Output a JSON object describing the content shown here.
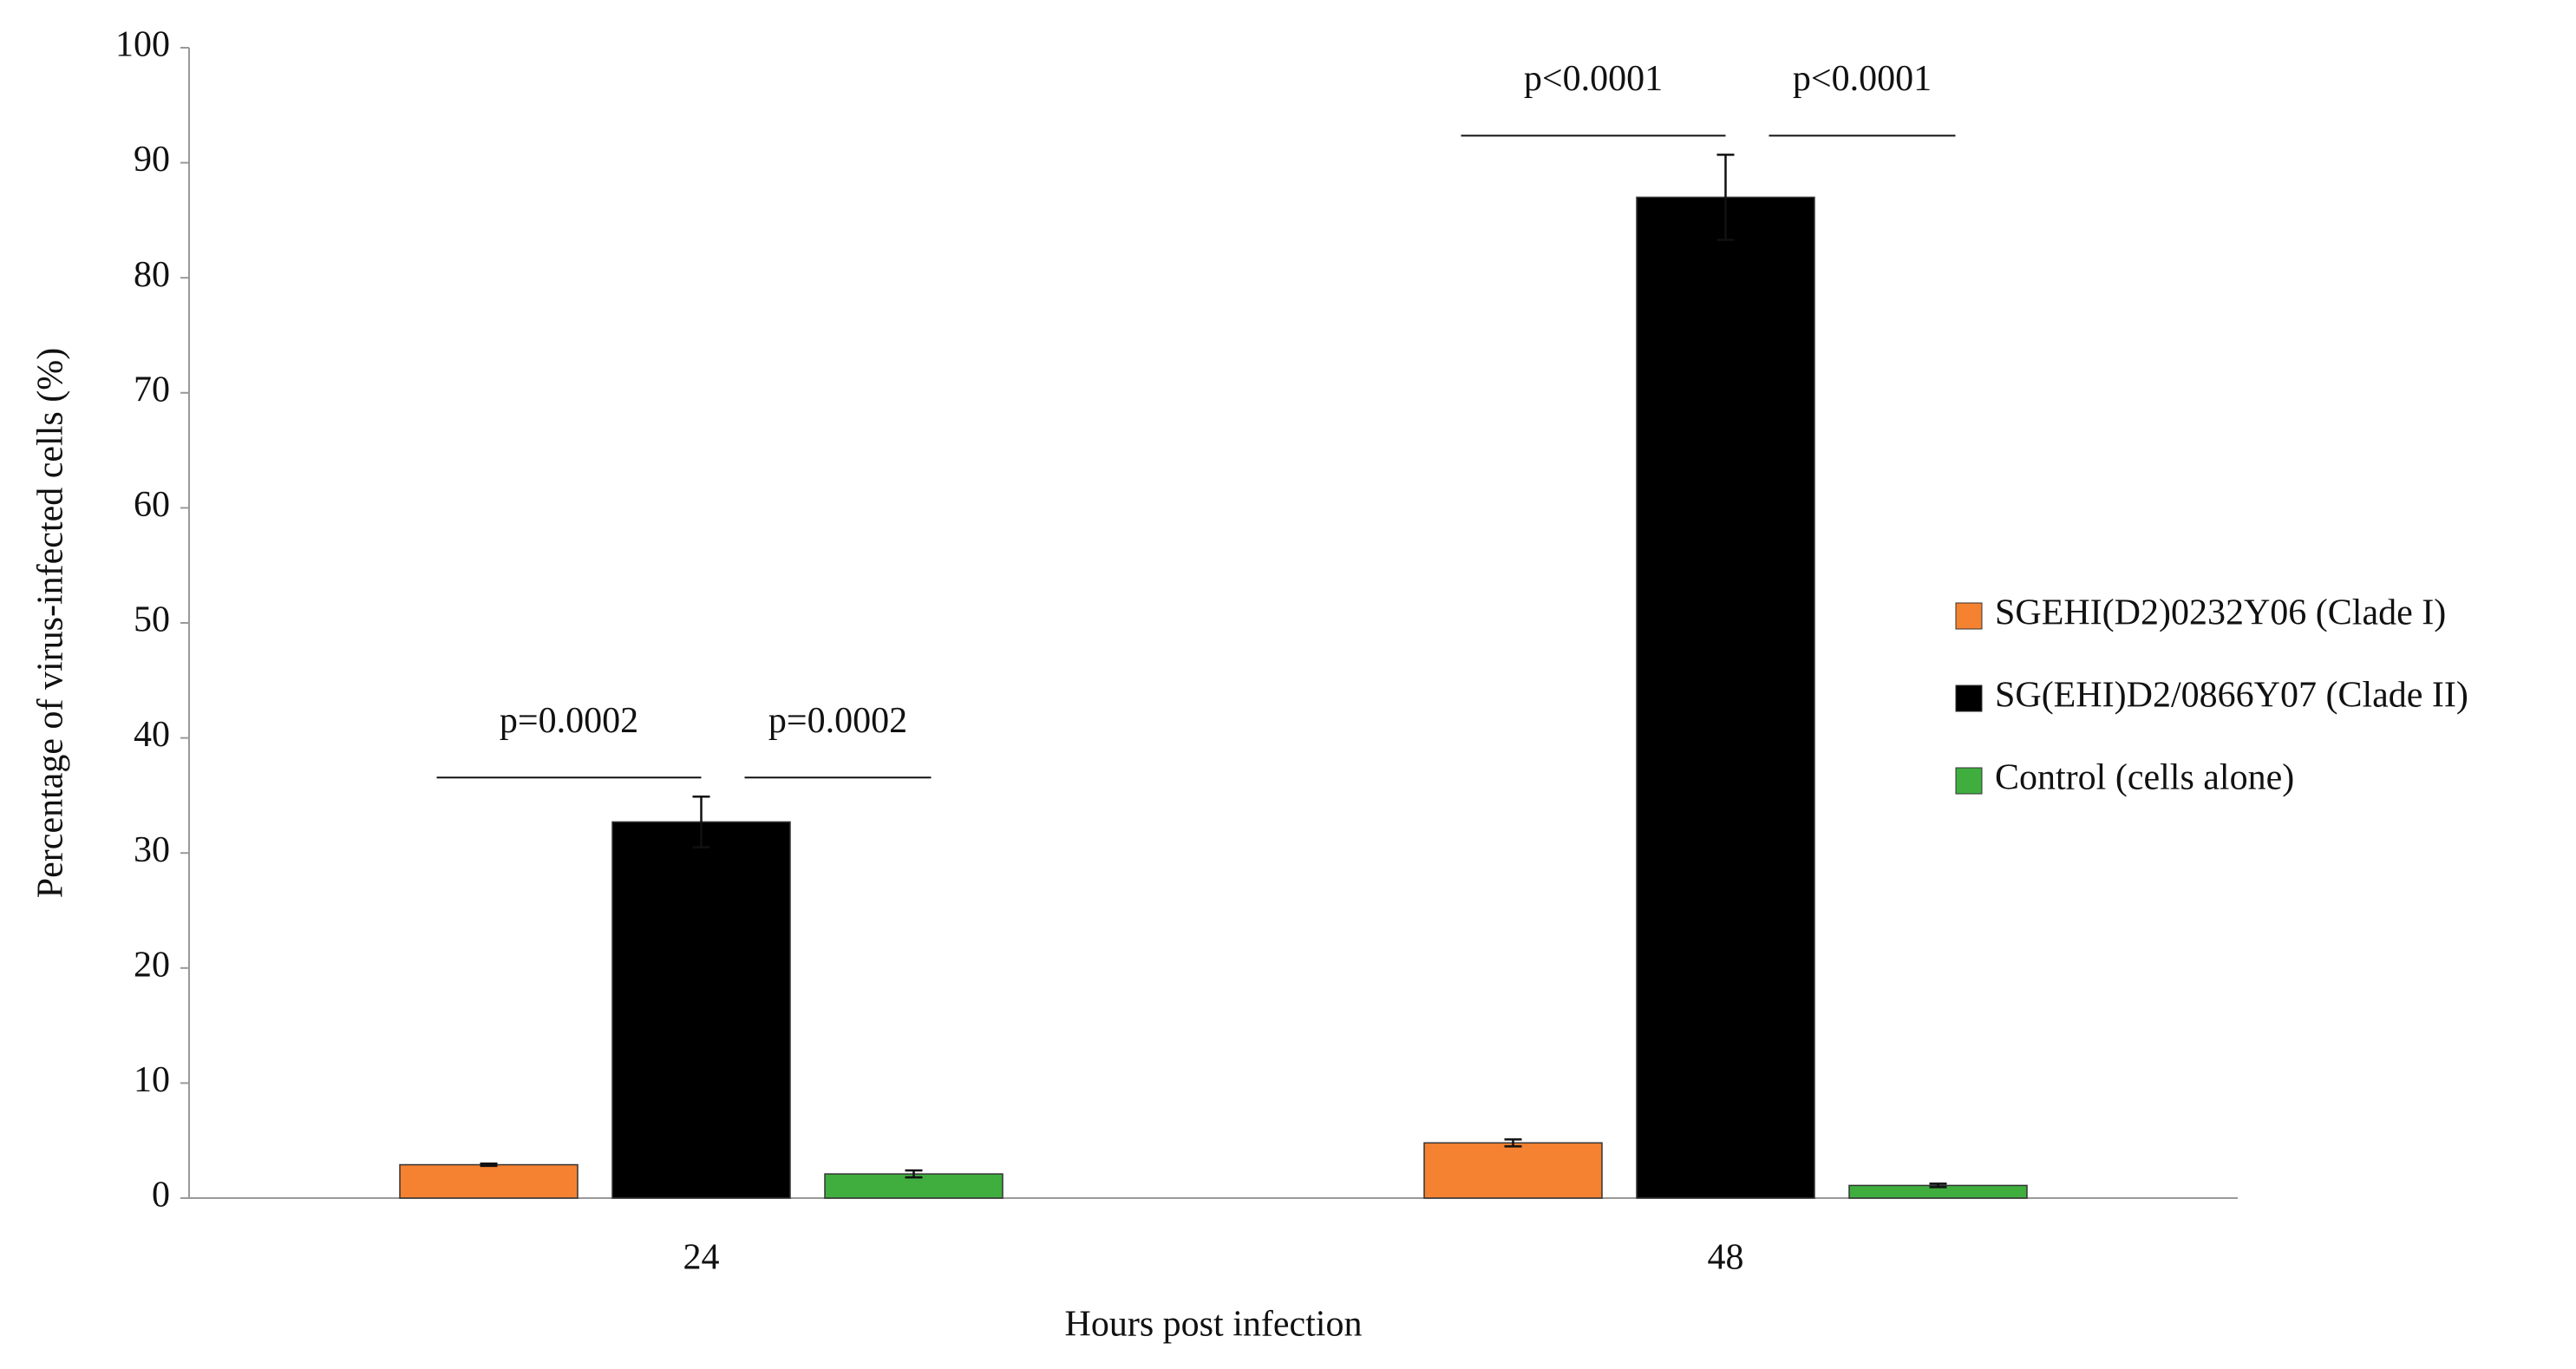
{
  "chart_data": {
    "type": "bar",
    "x_label": "Hours post infection",
    "y_label": "Percentage of virus-infected cells (%)",
    "categories": [
      "24",
      "48"
    ],
    "series": [
      {
        "name": "SGEHI(D2)0232Y06 (Clade I)",
        "color": "#f58231",
        "values": [
          2.9,
          4.8
        ],
        "errors": [
          0.1,
          0.3
        ]
      },
      {
        "name": "SG(EHI)D2/0866Y07 (Clade II)",
        "color": "#000000",
        "values": [
          32.7,
          87.0
        ],
        "errors": [
          2.2,
          3.7
        ]
      },
      {
        "name": "Control (cells alone)",
        "color": "#3fae3f",
        "values": [
          2.1,
          1.1
        ],
        "errors": [
          0.3,
          0.15
        ]
      }
    ],
    "annotations": [
      "p=0.0002",
      "p=0.0002",
      "p<0.0001",
      "p<0.0001"
    ],
    "ylim": [
      0,
      100
    ],
    "yticks": [
      0,
      10,
      20,
      30,
      40,
      50,
      60,
      70,
      80,
      90,
      100
    ],
    "grid": false,
    "legend": "right"
  }
}
